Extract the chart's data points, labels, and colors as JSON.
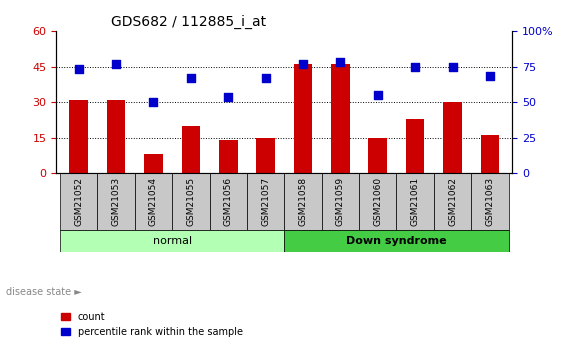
{
  "title": "GDS682 / 112885_i_at",
  "samples": [
    "GSM21052",
    "GSM21053",
    "GSM21054",
    "GSM21055",
    "GSM21056",
    "GSM21057",
    "GSM21058",
    "GSM21059",
    "GSM21060",
    "GSM21061",
    "GSM21062",
    "GSM21063"
  ],
  "counts": [
    31,
    31,
    8,
    20,
    14,
    15,
    46,
    46,
    15,
    23,
    30,
    16
  ],
  "percentiles_left_scale": [
    44,
    46,
    30,
    40,
    32,
    40,
    46,
    47,
    33,
    45,
    45,
    41
  ],
  "normal_indices": [
    0,
    1,
    2,
    3,
    4,
    5
  ],
  "downsyndrome_indices": [
    6,
    7,
    8,
    9,
    10,
    11
  ],
  "ylim_left": [
    0,
    60
  ],
  "ylim_right": [
    0,
    100
  ],
  "yticks_left": [
    0,
    15,
    30,
    45,
    60
  ],
  "yticks_right": [
    0,
    25,
    50,
    75,
    100
  ],
  "bar_color": "#cc0000",
  "dot_color": "#0000cc",
  "normal_color": "#b3ffb3",
  "downsyndrome_color": "#44cc44",
  "label_bg_color": "#c8c8c8",
  "grid_color": "#000000",
  "bar_width": 0.5,
  "dot_size": 40,
  "legend_count_label": "count",
  "legend_percentile_label": "percentile rank within the sample",
  "disease_state_label": "disease state",
  "disease_state_arrow": "►",
  "normal_label": "normal",
  "downsyndrome_label": "Down syndrome",
  "fig_bg_color": "#ffffff",
  "plot_bg_color": "#ffffff"
}
